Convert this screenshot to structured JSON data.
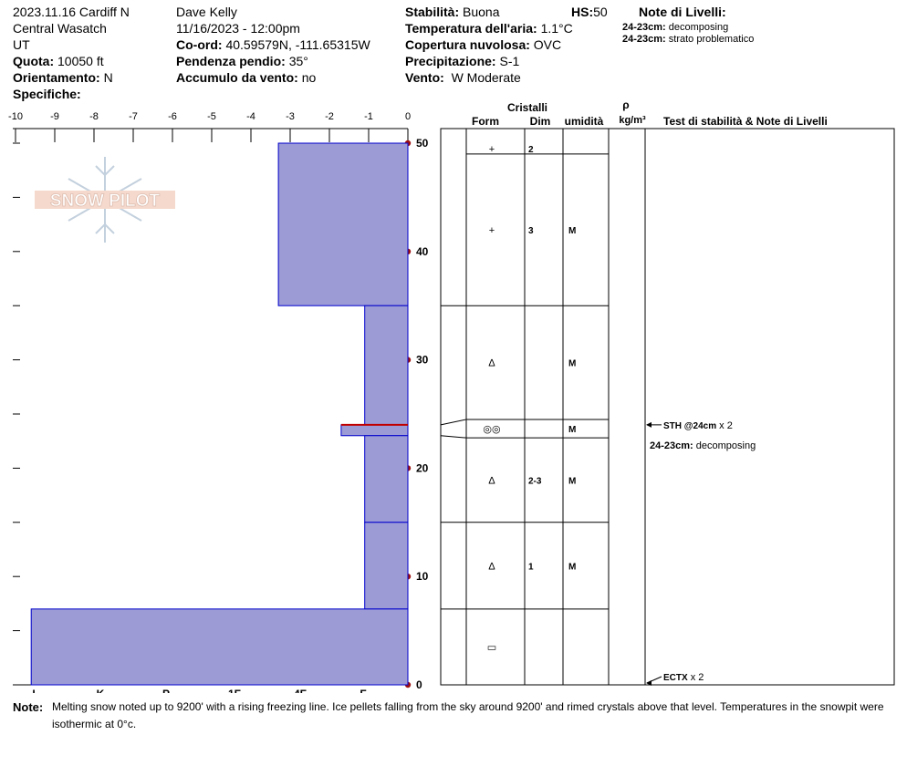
{
  "header": {
    "date_location": "2023.11.16 Cardiff N",
    "range": "Central Wasatch",
    "state": "UT",
    "elevation_label": "Quota:",
    "elevation_value": "10050 ft",
    "aspect_label": "Orientamento:",
    "aspect_value": "N",
    "specifics_label": "Specifiche:",
    "observer": "Dave Kelly",
    "datetime": "11/16/2023 - 12:00pm",
    "coords_label": "Co-ord:",
    "coords_value": "40.59579N, -111.65315W",
    "slope_label": "Pendenza pendio:",
    "slope_value": "35°",
    "wind_loading_label": "Accumulo da vento:",
    "wind_loading_value": "no",
    "stability_label": "Stabilità:",
    "stability_value": "Buona",
    "hs_label": "HS:",
    "hs_value": "50",
    "air_temp_label": "Temperatura dell'aria:",
    "air_temp_value": "1.1°C",
    "cloud_label": "Copertura nuvolosa:",
    "cloud_value": "OVC",
    "precip_label": "Precipitazione:",
    "precip_value": "S-1",
    "wind_label": "Vento:",
    "wind_value": "W Moderate",
    "layer_notes_label": "Note di Livelli:",
    "layer_notes": [
      {
        "depth": "24-23cm:",
        "text": "decomposing"
      },
      {
        "depth": "24-23cm:",
        "text": "strato problematico"
      }
    ]
  },
  "columns": {
    "crystals": "Cristalli",
    "form": "Form",
    "size": "Dim",
    "moisture": "umidità",
    "rho": "ρ",
    "density_unit": "kg/m³",
    "tests": "Test di stabilità & Note di Livelli"
  },
  "logo_text": "SNOW PILOT",
  "colors": {
    "layer_fill": "#9c9bd6",
    "layer_stroke": "#0000cc",
    "marker": "#a01010",
    "weak_layer": "#c00000"
  },
  "chart_data": {
    "type": "bar",
    "title": "",
    "top_axis_ticks": [
      "-10",
      "-9",
      "-8",
      "-7",
      "-6",
      "-5",
      "-4",
      "-3",
      "-2",
      "-1",
      "0"
    ],
    "hardness_labels": [
      "I",
      "K",
      "P",
      "1F",
      "4F",
      "F"
    ],
    "height_ticks": [
      "0",
      "10",
      "20",
      "30",
      "40",
      "50"
    ],
    "ylim": [
      0,
      50
    ],
    "layers": [
      {
        "top": 50,
        "bottom": 35,
        "hardness": 3.3,
        "form": "+",
        "size": "2",
        "moisture": ""
      },
      {
        "top": 35,
        "bottom": 24,
        "hardness": 1.1,
        "form": "∆",
        "size": "",
        "moisture": "M"
      },
      {
        "top": 24,
        "bottom": 23,
        "hardness": 1.7,
        "form": "◎◎",
        "size": "",
        "moisture": "M"
      },
      {
        "top": 23,
        "bottom": 15,
        "hardness": 1.1,
        "form": "∆",
        "size": "2-3",
        "moisture": "M"
      },
      {
        "top": 15,
        "bottom": 7,
        "hardness": 1.1,
        "form": "∆",
        "size": "1",
        "moisture": "M"
      },
      {
        "top": 7,
        "bottom": 0,
        "hardness": 9.6,
        "form": "▭",
        "size": "",
        "moisture": ""
      }
    ],
    "crystal_rows": [
      {
        "top": 50,
        "bottom": 49,
        "form": "+",
        "size": "2",
        "moisture": ""
      },
      {
        "top": 49,
        "bottom": 35,
        "form": "+",
        "size": "3",
        "moisture": "M"
      },
      {
        "top": 35,
        "bottom": 24.5,
        "form": "∆",
        "size": "",
        "moisture": "M"
      },
      {
        "top": 24.5,
        "bottom": 22.8,
        "form": "◎◎",
        "size": "",
        "moisture": "M"
      },
      {
        "top": 22.8,
        "bottom": 15,
        "form": "∆",
        "size": "2-3",
        "moisture": "M"
      },
      {
        "top": 15,
        "bottom": 7,
        "form": "∆",
        "size": "1",
        "moisture": "M"
      },
      {
        "top": 7,
        "bottom": 0,
        "form": "▭",
        "size": "",
        "moisture": ""
      }
    ],
    "weak_layer_depth": 24,
    "tests": [
      {
        "depth": 24,
        "label": "STH @24cm",
        "count": "x 2"
      },
      {
        "depth": 0,
        "label": "ECTX",
        "count": "x 2"
      }
    ],
    "test_notes": [
      {
        "depth": 22.3,
        "label": "24-23cm:",
        "text": "decomposing"
      }
    ]
  },
  "notes": {
    "label": "Note:",
    "text": "Melting snow noted up to 9200' with a rising freezing line. Ice pellets falling from the sky around 9200' and rimed crystals above that level. Temperatures in the snowpit were isothermic at 0°c."
  }
}
